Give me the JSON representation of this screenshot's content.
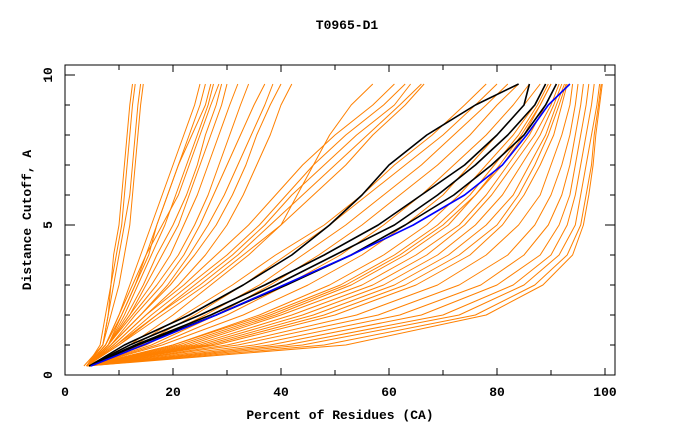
{
  "chart_data": {
    "type": "line",
    "title": "T0965-D1",
    "xlabel": "Percent of Residues (CA)",
    "ylabel": "Distance Cutoff, A",
    "xlim": [
      0,
      100
    ],
    "ylim": [
      0,
      10
    ],
    "xticks": [
      "0",
      "20",
      "40",
      "60",
      "80",
      "100"
    ],
    "xtick_values": [
      0,
      20,
      40,
      60,
      80,
      100
    ],
    "yticks": [
      "0",
      "5",
      "10"
    ],
    "ytick_values": [
      0,
      5,
      10
    ],
    "grid": false,
    "y_levels": [
      0.3,
      1,
      2,
      3,
      4,
      5,
      6,
      7,
      8,
      9,
      9.7
    ],
    "colors": {
      "orange": "#ff8000",
      "black": "#000000",
      "blue": "#0000ff"
    },
    "series_orange": [
      [
        4,
        7,
        8,
        9,
        10,
        11,
        12,
        12.5,
        13,
        13.5,
        14
      ],
      [
        4,
        7,
        8,
        8.5,
        9.5,
        10.5,
        11,
        11.5,
        12,
        12.5,
        13
      ],
      [
        4,
        6.5,
        7.5,
        8.5,
        9,
        10,
        10.5,
        11,
        11.5,
        12,
        12.5
      ],
      [
        3.5,
        7,
        8.5,
        10,
        11,
        12,
        12.5,
        13,
        13.5,
        14,
        14.5
      ],
      [
        4,
        7.5,
        10,
        12,
        14,
        16,
        18,
        20,
        22,
        24,
        25
      ],
      [
        4,
        7.5,
        10.5,
        13,
        15,
        17,
        19,
        21,
        23,
        25,
        26
      ],
      [
        4,
        8,
        11,
        13.5,
        16,
        18.5,
        20.5,
        22.5,
        24.5,
        26.5,
        27.5
      ],
      [
        4,
        7.5,
        10,
        12.5,
        15,
        18,
        21,
        23,
        25,
        27,
        28.5
      ],
      [
        4,
        8,
        11.5,
        14.5,
        17,
        20,
        22.5,
        24.5,
        26,
        28,
        29
      ],
      [
        4,
        8,
        12,
        15,
        18,
        21,
        23,
        25,
        27,
        29,
        30
      ],
      [
        4,
        8,
        10.5,
        13,
        15.5,
        17,
        19,
        21,
        23.5,
        26,
        27
      ],
      [
        4,
        8,
        12,
        16,
        19.5,
        22,
        24.5,
        26.5,
        28.5,
        30.5,
        32
      ],
      [
        4,
        8,
        12.5,
        17,
        21,
        24,
        26.5,
        28.5,
        30.5,
        32.5,
        34
      ],
      [
        4,
        8.5,
        13,
        18,
        22,
        25,
        27.5,
        30,
        32.5,
        35,
        37
      ],
      [
        4,
        8.5,
        14,
        19,
        23,
        26.5,
        29.5,
        32,
        34.5,
        37,
        38.5
      ],
      [
        4,
        8.5,
        14,
        19.5,
        24,
        28,
        31,
        33.5,
        35.5,
        38,
        40
      ],
      [
        4,
        9,
        15,
        21,
        26,
        30,
        33,
        35.5,
        38,
        40,
        42
      ],
      [
        4,
        9,
        15,
        22,
        28,
        34,
        39,
        44,
        50,
        57,
        61
      ],
      [
        4,
        9.5,
        16,
        23,
        30,
        36,
        41,
        46,
        52,
        59,
        63
      ],
      [
        4,
        9.5,
        17,
        24,
        31,
        37,
        42,
        48,
        54,
        61,
        64
      ],
      [
        4,
        10,
        17,
        25,
        32,
        38,
        44,
        50,
        56,
        62,
        66
      ],
      [
        4,
        10,
        18,
        26,
        33,
        40,
        46,
        52,
        57,
        63,
        66.5
      ],
      [
        4,
        12,
        20,
        27,
        34,
        40,
        43,
        46,
        49,
        53,
        57
      ],
      [
        4,
        13,
        22,
        31,
        39,
        48,
        55,
        61,
        68,
        74,
        78
      ],
      [
        4,
        14,
        24,
        33,
        41,
        49,
        56,
        63,
        70,
        76,
        80
      ],
      [
        4,
        15,
        26,
        36,
        44,
        52,
        59,
        66,
        72,
        78,
        82
      ],
      [
        4,
        16,
        28,
        38,
        47,
        55,
        62,
        69,
        75,
        80,
        84
      ],
      [
        4,
        17,
        30,
        41,
        51,
        59,
        66,
        72,
        78,
        83,
        86
      ],
      [
        4,
        18,
        33,
        45,
        55,
        63,
        70,
        75,
        80,
        85,
        88
      ],
      [
        4,
        20,
        36,
        49,
        59,
        67,
        73,
        78,
        83,
        87,
        89
      ],
      [
        4,
        22,
        39,
        53,
        63,
        71,
        76,
        81,
        85,
        88,
        90
      ],
      [
        4,
        24,
        42,
        57,
        67,
        74,
        79,
        83,
        87,
        90,
        91.5
      ],
      [
        4,
        26,
        46,
        61,
        71,
        78,
        83,
        86,
        89,
        91,
        92.5
      ],
      [
        4,
        28,
        50,
        65,
        75,
        81,
        85,
        88,
        90.5,
        92,
        93
      ],
      [
        4,
        30,
        54,
        69,
        78,
        84,
        88,
        90,
        92,
        93.5,
        94
      ],
      [
        4,
        32,
        58,
        73,
        82,
        87,
        90,
        92,
        93.5,
        94.5,
        95
      ],
      [
        4,
        35,
        62,
        77,
        85,
        89.5,
        92,
        93.5,
        94.5,
        95.5,
        96
      ],
      [
        4,
        38,
        66,
        80,
        88,
        91.5,
        93.5,
        94.5,
        95.5,
        96.5,
        97
      ],
      [
        4,
        41,
        70,
        83,
        90,
        93,
        94.5,
        95.5,
        96.5,
        97.5,
        98
      ],
      [
        4,
        44,
        73,
        85,
        91.5,
        94.5,
        95.5,
        96.5,
        97.5,
        98.5,
        99
      ],
      [
        4,
        48,
        76,
        87,
        93,
        95.5,
        96.5,
        97.5,
        98,
        98.8,
        99.3
      ],
      [
        4,
        52,
        78,
        88.5,
        94,
        96,
        97,
        97.8,
        98.3,
        99,
        99.5
      ],
      [
        4,
        20,
        37,
        51,
        61,
        69,
        75,
        79.5,
        84,
        87.5,
        89.5
      ],
      [
        4,
        21,
        38,
        52,
        62,
        70,
        76,
        80.5,
        84.5,
        88,
        90
      ],
      [
        4,
        23,
        40,
        55,
        65,
        73,
        78,
        82,
        86,
        89,
        91
      ],
      [
        4,
        25,
        44,
        59,
        69,
        76,
        81,
        84.5,
        88,
        90.5,
        92
      ],
      [
        4,
        27,
        48,
        63,
        73,
        80,
        84,
        87,
        89.5,
        91.5,
        92.8
      ]
    ],
    "series_black": [
      [
        4.5,
        11,
        23,
        33,
        42,
        49,
        55,
        60,
        67,
        76,
        84
      ],
      [
        4.5,
        12,
        25,
        37,
        48,
        58,
        66,
        74,
        80,
        85,
        86
      ],
      [
        4.5,
        13,
        27,
        39,
        50,
        61,
        69,
        76,
        82,
        87,
        89
      ],
      [
        4.5,
        13.5,
        28,
        41,
        53,
        63,
        72,
        79,
        85,
        89,
        91
      ]
    ],
    "series_blue": [
      [
        4.8,
        14.5,
        28,
        40.5,
        53,
        64.5,
        74,
        81,
        85.5,
        89.5,
        93.5
      ]
    ]
  }
}
